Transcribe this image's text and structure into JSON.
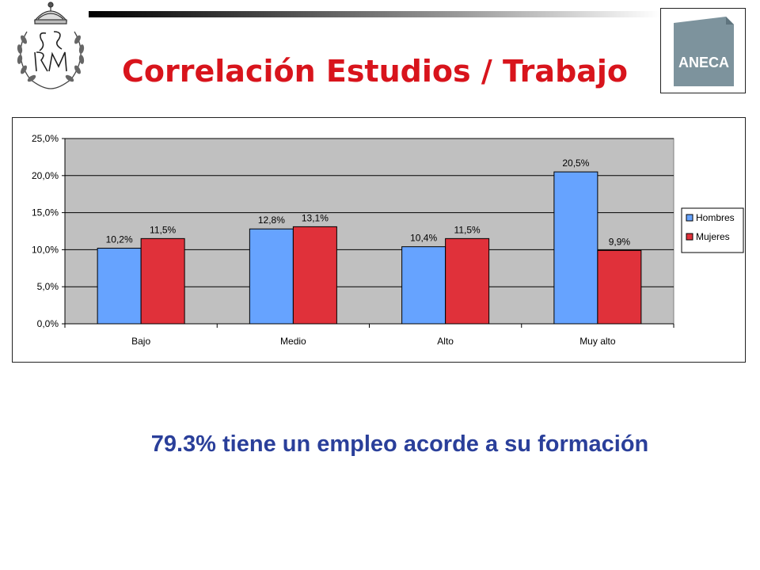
{
  "slide": {
    "title": "Correlación Estudios / Trabajo",
    "caption": "79.3% tiene un empleo acorde a su formación",
    "logo_text": "ANECA",
    "seal_monogram": "SE RM"
  },
  "chart_data": {
    "type": "bar",
    "title": "",
    "xlabel": "",
    "ylabel": "",
    "categories": [
      "Bajo",
      "Medio",
      "Alto",
      "Muy alto"
    ],
    "series": [
      {
        "name": "Hombres",
        "values": [
          10.2,
          12.8,
          10.4,
          20.5
        ],
        "labels": [
          "10,2%",
          "12,8%",
          "10,4%",
          "20,5%"
        ],
        "color": "#66a3ff"
      },
      {
        "name": "Mujeres",
        "values": [
          11.5,
          13.1,
          11.5,
          9.9
        ],
        "labels": [
          "11,5%",
          "13,1%",
          "11,5%",
          "9,9%"
        ],
        "color": "#e0313a"
      }
    ],
    "ylim": [
      0,
      25
    ],
    "yticks": [
      0,
      5,
      10,
      15,
      20,
      25
    ],
    "ytick_labels": [
      "0,0%",
      "5,0%",
      "10,0%",
      "15,0%",
      "20,0%",
      "25,0%"
    ],
    "grid": true,
    "plot_background": "#c0c0c0",
    "legend_position": "right"
  }
}
